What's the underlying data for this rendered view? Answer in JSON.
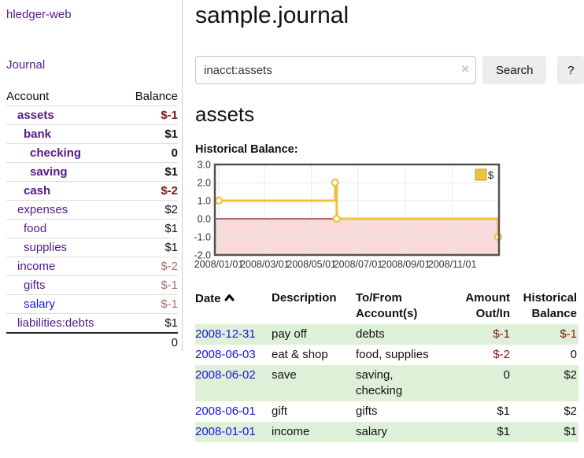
{
  "app": {
    "title": "hledger-web"
  },
  "nav": {
    "journal": "Journal"
  },
  "sidebar": {
    "headers": {
      "account": "Account",
      "balance": "Balance"
    },
    "accounts": [
      {
        "name": "assets",
        "depth": 1,
        "bold": true,
        "balance": "$-1",
        "neg": true
      },
      {
        "name": "bank",
        "depth": 2,
        "bold": true,
        "balance": "$1"
      },
      {
        "name": "checking",
        "depth": 3,
        "bold": true,
        "balance": "0"
      },
      {
        "name": "saving",
        "depth": 3,
        "bold": true,
        "balance": "$1"
      },
      {
        "name": "cash",
        "depth": 2,
        "bold": true,
        "balance": "$-2",
        "neg": true
      },
      {
        "name": "expenses",
        "depth": 1,
        "bold": false,
        "balance": "$2"
      },
      {
        "name": "food",
        "depth": 2,
        "bold": false,
        "balance": "$1"
      },
      {
        "name": "supplies",
        "depth": 2,
        "bold": false,
        "balance": "$1"
      },
      {
        "name": "income",
        "depth": 1,
        "bold": false,
        "balance": "$-2",
        "neg": true
      },
      {
        "name": "gifts",
        "depth": 2,
        "bold": false,
        "balance": "$-1",
        "neg": true
      },
      {
        "name": "salary",
        "depth": 2,
        "bold": false,
        "balance": "$-1",
        "neg": true,
        "blue": true
      },
      {
        "name": "liabilities:debts",
        "depth": 1,
        "bold": false,
        "balance": "$1"
      }
    ],
    "total": "0"
  },
  "header": {
    "title": "sample.journal"
  },
  "search": {
    "value": "inacct:assets",
    "clear_icon": "×",
    "button": "Search",
    "help_button": "?"
  },
  "account_page": {
    "heading": "assets",
    "chart_title": "Historical Balance:"
  },
  "chart_data": {
    "type": "line",
    "style": "step",
    "title": "Historical Balance:",
    "legend_position": "top-right",
    "series": [
      {
        "name": "$",
        "color": "#edc240",
        "marker_fill": "#ffffff",
        "points": [
          [
            "2008-01-01",
            1
          ],
          [
            "2008-06-01",
            2
          ],
          [
            "2008-06-03",
            0
          ],
          [
            "2008-12-31",
            -1
          ]
        ]
      }
    ],
    "x_range": [
      "2008-01-01",
      "2008-12-31"
    ],
    "x_ticks": [
      "2008/01/01",
      "2008/03/01",
      "2008/05/01",
      "2008/07/01",
      "2008/09/01",
      "2008/11/01"
    ],
    "y_ticks": [
      "3.0",
      "2.0",
      "1.0",
      "0.0",
      "-1.0",
      "-2.0"
    ],
    "ylim": [
      -2,
      3
    ],
    "grid": true,
    "negative_region_color": "#f9dada",
    "zero_line_color": "#991111",
    "grid_color": "#e8e8e8",
    "border_color": "#545454",
    "legend_swatch_border": "#c7a028"
  },
  "register": {
    "columns": {
      "date": "Date",
      "description": "Description",
      "accounts": "To/From Account(s)",
      "amount": "Amount Out/In",
      "balance": "Historical Balance"
    },
    "rows": [
      {
        "date": "2008-12-31",
        "description": "pay off",
        "accounts": "debts",
        "amount": "$-1",
        "amount_neg": true,
        "balance": "$-1",
        "balance_neg": true
      },
      {
        "date": "2008-06-03",
        "description": "eat & shop",
        "accounts": "food, supplies",
        "amount": "$-2",
        "amount_neg": true,
        "balance": "0",
        "balance_neg": false
      },
      {
        "date": "2008-06-02",
        "description": "save",
        "accounts": "saving, checking",
        "amount": "0",
        "amount_neg": false,
        "balance": "$2",
        "balance_neg": false
      },
      {
        "date": "2008-06-01",
        "description": "gift",
        "accounts": "gifts",
        "amount": "$1",
        "amount_neg": false,
        "balance": "$2",
        "balance_neg": false
      },
      {
        "date": "2008-01-01",
        "description": "income",
        "accounts": "salary",
        "amount": "$1",
        "amount_neg": false,
        "balance": "$1",
        "balance_neg": false
      }
    ]
  },
  "colors": {
    "link_purple": "#551a8b",
    "link_blue": "#1616e0",
    "negative_strong": "#801414",
    "negative_soft": "#b56a6a",
    "row_green": "#dff0d8",
    "series_gold": "#edc240"
  }
}
